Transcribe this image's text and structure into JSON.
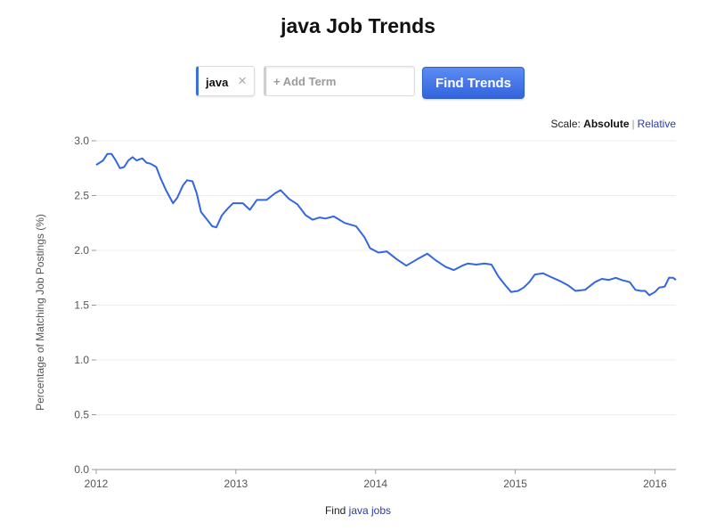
{
  "page": {
    "title": "java Job Trends"
  },
  "search": {
    "term_label": "java",
    "close_glyph": "×",
    "add_placeholder": "+ Add Term",
    "find_button_label": "Find Trends"
  },
  "scale": {
    "prefix": "Scale:",
    "absolute_label": "Absolute",
    "separator": "|",
    "relative_label": "Relative",
    "selected": "Absolute"
  },
  "footer": {
    "prefix": "Find",
    "link_text": "java jobs"
  },
  "colors": {
    "line": "#3366e0",
    "accent": "#3b6fe0",
    "link": "#2a3ab0"
  },
  "chart_data": {
    "type": "line",
    "title": "",
    "xlabel": "",
    "ylabel": "Percentage of Matching Job Postings (%)",
    "xlim": [
      2012.0,
      2016.15
    ],
    "ylim": [
      0,
      3.0
    ],
    "x_ticks": [
      "2012",
      "2013",
      "2014",
      "2015",
      "2016"
    ],
    "y_ticks": [
      "0.0",
      "0.5",
      "1.0",
      "1.5",
      "2.0",
      "2.5",
      "3.0"
    ],
    "grid": true,
    "series": [
      {
        "values": [
          [
            2012.0,
            2.78
          ],
          [
            2012.0,
            2.78
          ],
          [
            2012.05,
            2.82
          ],
          [
            2012.08,
            2.88
          ],
          [
            2012.11,
            2.88
          ],
          [
            2012.14,
            2.82
          ],
          [
            2012.17,
            2.75
          ],
          [
            2012.2,
            2.76
          ],
          [
            2012.23,
            2.82
          ],
          [
            2012.26,
            2.85
          ],
          [
            2012.29,
            2.82
          ],
          [
            2012.33,
            2.84
          ],
          [
            2012.36,
            2.8
          ],
          [
            2012.39,
            2.79
          ],
          [
            2012.43,
            2.76
          ],
          [
            2012.46,
            2.66
          ],
          [
            2012.5,
            2.55
          ],
          [
            2012.55,
            2.43
          ],
          [
            2012.58,
            2.48
          ],
          [
            2012.62,
            2.59
          ],
          [
            2012.65,
            2.64
          ],
          [
            2012.69,
            2.63
          ],
          [
            2012.72,
            2.52
          ],
          [
            2012.75,
            2.35
          ],
          [
            2012.8,
            2.27
          ],
          [
            2012.83,
            2.22
          ],
          [
            2012.86,
            2.21
          ],
          [
            2012.9,
            2.32
          ],
          [
            2012.94,
            2.38
          ],
          [
            2012.98,
            2.43
          ],
          [
            2013.05,
            2.43
          ],
          [
            2013.1,
            2.37
          ],
          [
            2013.15,
            2.46
          ],
          [
            2013.22,
            2.46
          ],
          [
            2013.28,
            2.52
          ],
          [
            2013.32,
            2.55
          ],
          [
            2013.38,
            2.47
          ],
          [
            2013.44,
            2.42
          ],
          [
            2013.5,
            2.32
          ],
          [
            2013.55,
            2.28
          ],
          [
            2013.6,
            2.3
          ],
          [
            2013.64,
            2.29
          ],
          [
            2013.7,
            2.31
          ],
          [
            2013.78,
            2.25
          ],
          [
            2013.86,
            2.22
          ],
          [
            2013.92,
            2.12
          ],
          [
            2013.96,
            2.02
          ],
          [
            2014.02,
            1.98
          ],
          [
            2014.08,
            1.99
          ],
          [
            2014.15,
            1.92
          ],
          [
            2014.22,
            1.86
          ],
          [
            2014.3,
            1.92
          ],
          [
            2014.37,
            1.97
          ],
          [
            2014.43,
            1.91
          ],
          [
            2014.5,
            1.85
          ],
          [
            2014.56,
            1.82
          ],
          [
            2014.62,
            1.86
          ],
          [
            2014.66,
            1.88
          ],
          [
            2014.72,
            1.87
          ],
          [
            2014.78,
            1.88
          ],
          [
            2014.83,
            1.87
          ],
          [
            2014.88,
            1.76
          ],
          [
            2014.93,
            1.68
          ],
          [
            2014.97,
            1.62
          ],
          [
            2015.02,
            1.63
          ],
          [
            2015.06,
            1.66
          ],
          [
            2015.1,
            1.71
          ],
          [
            2015.14,
            1.78
          ],
          [
            2015.2,
            1.79
          ],
          [
            2015.25,
            1.76
          ],
          [
            2015.32,
            1.72
          ],
          [
            2015.38,
            1.68
          ],
          [
            2015.43,
            1.63
          ],
          [
            2015.5,
            1.64
          ],
          [
            2015.57,
            1.71
          ],
          [
            2015.62,
            1.74
          ],
          [
            2015.67,
            1.73
          ],
          [
            2015.72,
            1.75
          ],
          [
            2015.76,
            1.73
          ],
          [
            2015.82,
            1.71
          ],
          [
            2015.86,
            1.64
          ],
          [
            2015.9,
            1.63
          ],
          [
            2015.93,
            1.63
          ],
          [
            2015.96,
            1.59
          ],
          [
            2016.0,
            1.62
          ],
          [
            2016.03,
            1.66
          ],
          [
            2016.07,
            1.67
          ],
          [
            2016.1,
            1.75
          ],
          [
            2016.13,
            1.75
          ],
          [
            2016.15,
            1.73
          ]
        ]
      }
    ]
  }
}
